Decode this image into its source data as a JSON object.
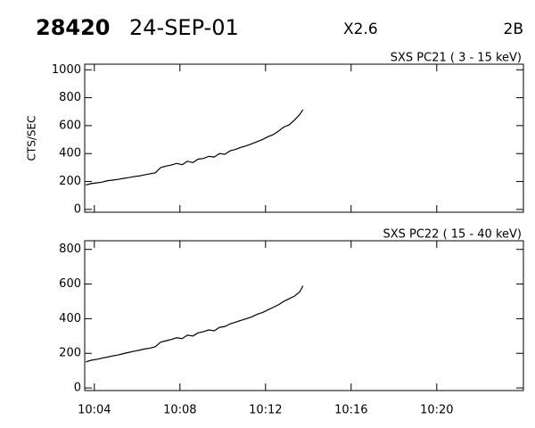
{
  "header": {
    "id": "28420",
    "date": "24-SEP-01",
    "class": "X2.6",
    "optical": "2B"
  },
  "chart_data": [
    {
      "type": "line",
      "title": "SXS PC21  (  3 - 15 keV)",
      "ylabel": "CTS/SEC",
      "x": [
        603.6,
        603.85,
        604.1,
        604.35,
        604.6,
        604.85,
        605.1,
        605.35,
        605.6,
        605.85,
        606.1,
        606.35,
        606.6,
        606.85,
        607.1,
        607.35,
        607.6,
        607.85,
        608.1,
        608.35,
        608.6,
        608.85,
        609.1,
        609.35,
        609.6,
        609.85,
        610.1,
        610.35,
        610.6,
        610.85,
        611.1,
        611.35,
        611.6,
        611.85,
        612.1,
        612.35,
        612.6,
        612.85,
        613.1,
        613.35,
        613.6,
        613.75
      ],
      "series": [
        {
          "color": "#000000",
          "values": [
            175,
            185,
            190,
            195,
            205,
            210,
            215,
            222,
            228,
            235,
            240,
            248,
            255,
            262,
            300,
            310,
            318,
            330,
            320,
            345,
            335,
            360,
            365,
            380,
            375,
            400,
            395,
            420,
            430,
            445,
            455,
            470,
            485,
            500,
            520,
            535,
            560,
            590,
            605,
            640,
            680,
            715
          ]
        }
      ],
      "xlim": [
        603.55,
        624.05
      ],
      "xticks": [
        604,
        608,
        612,
        616,
        620
      ],
      "ylim": [
        -20,
        1040
      ],
      "yticks": [
        0,
        200,
        400,
        600,
        800,
        1000
      ]
    },
    {
      "type": "line",
      "title": "SXS PC22  ( 15 - 40 keV)",
      "x": [
        603.6,
        603.85,
        604.1,
        604.35,
        604.6,
        604.85,
        605.1,
        605.35,
        605.6,
        605.85,
        606.1,
        606.35,
        606.6,
        606.85,
        607.1,
        607.35,
        607.6,
        607.85,
        608.1,
        608.35,
        608.6,
        608.85,
        609.1,
        609.35,
        609.6,
        609.85,
        610.1,
        610.35,
        610.6,
        610.85,
        611.1,
        611.35,
        611.6,
        611.85,
        612.1,
        612.35,
        612.6,
        612.85,
        613.1,
        613.35,
        613.6,
        613.75
      ],
      "series": [
        {
          "color": "#000000",
          "values": [
            150,
            160,
            165,
            172,
            178,
            185,
            190,
            198,
            205,
            212,
            218,
            225,
            230,
            238,
            265,
            272,
            280,
            290,
            285,
            305,
            300,
            318,
            325,
            335,
            330,
            350,
            355,
            370,
            380,
            390,
            400,
            410,
            425,
            435,
            450,
            465,
            480,
            500,
            515,
            530,
            555,
            590
          ]
        }
      ],
      "xlim": [
        603.55,
        624.05
      ],
      "xticks": [
        {
          "value": 604,
          "label": "10:04"
        },
        {
          "value": 608,
          "label": "10:08"
        },
        {
          "value": 612,
          "label": "10:12"
        },
        {
          "value": 616,
          "label": "10:16"
        },
        {
          "value": 620,
          "label": "10:20"
        }
      ],
      "ylim": [
        -15,
        850
      ],
      "yticks": [
        0,
        200,
        400,
        600,
        800
      ]
    }
  ]
}
